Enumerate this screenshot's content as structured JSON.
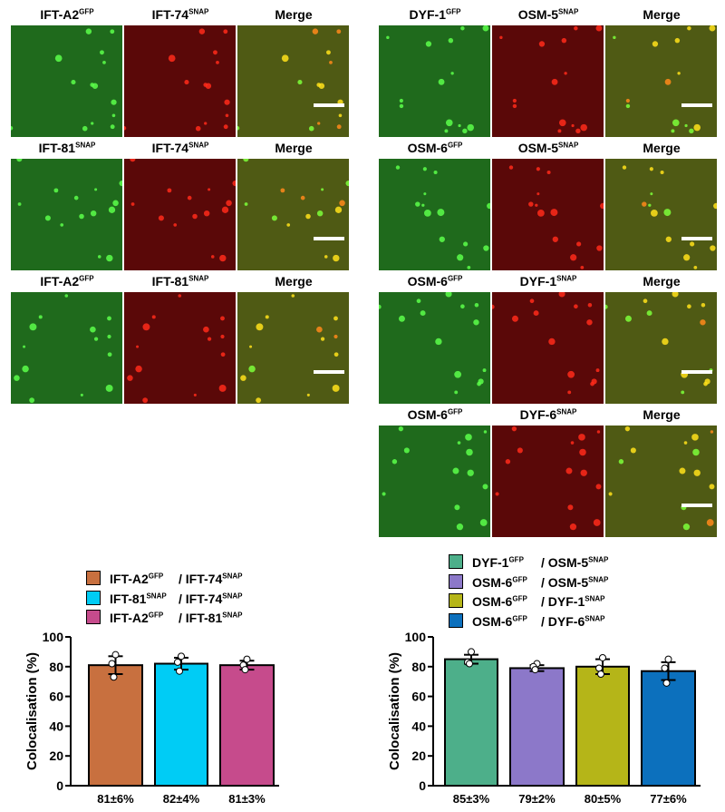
{
  "figure": {
    "left_panels": [
      {
        "labels": [
          {
            "name": "IFT-A2",
            "sup": "GFP"
          },
          {
            "name": "IFT-74",
            "sup": "SNAP"
          },
          {
            "name": "Merge",
            "sup": ""
          }
        ]
      },
      {
        "labels": [
          {
            "name": "IFT-81",
            "sup": "SNAP"
          },
          {
            "name": "IFT-74",
            "sup": "SNAP"
          },
          {
            "name": "Merge",
            "sup": ""
          }
        ]
      },
      {
        "labels": [
          {
            "name": "IFT-A2",
            "sup": "GFP"
          },
          {
            "name": "IFT-81",
            "sup": "SNAP"
          },
          {
            "name": "Merge",
            "sup": ""
          }
        ]
      }
    ],
    "right_panels": [
      {
        "labels": [
          {
            "name": "DYF-1",
            "sup": "GFP"
          },
          {
            "name": "OSM-5",
            "sup": "SNAP"
          },
          {
            "name": "Merge",
            "sup": ""
          }
        ]
      },
      {
        "labels": [
          {
            "name": "OSM-6",
            "sup": "GFP"
          },
          {
            "name": "OSM-5",
            "sup": "SNAP"
          },
          {
            "name": "Merge",
            "sup": ""
          }
        ]
      },
      {
        "labels": [
          {
            "name": "OSM-6",
            "sup": "GFP"
          },
          {
            "name": "DYF-1",
            "sup": "SNAP"
          },
          {
            "name": "Merge",
            "sup": ""
          }
        ]
      },
      {
        "labels": [
          {
            "name": "OSM-6",
            "sup": "GFP"
          },
          {
            "name": "DYF-6",
            "sup": "SNAP"
          },
          {
            "name": "Merge",
            "sup": ""
          }
        ]
      }
    ]
  },
  "chart_data": [
    {
      "type": "bar",
      "ylabel": "Colocalisation (%)",
      "ylim": [
        0,
        100
      ],
      "yticks": [
        0,
        20,
        40,
        60,
        80,
        100
      ],
      "legend": "top",
      "categories": [
        "81±6%",
        "82±4%",
        "81±3%"
      ],
      "series": [
        {
          "a": "IFT-A2",
          "a_sup": "GFP",
          "b": "/ IFT-74",
          "b_sup": "SNAP",
          "color": "#c8703f",
          "value": 81,
          "sd": 6,
          "points": [
            88,
            82,
            73
          ]
        },
        {
          "a": "IFT-81",
          "a_sup": "SNAP",
          "b": "/ IFT-74",
          "b_sup": "SNAP",
          "color": "#00ccf5",
          "value": 82,
          "sd": 4,
          "points": [
            87,
            83,
            77
          ]
        },
        {
          "a": "IFT-A2",
          "a_sup": "GFP",
          "b": "/ IFT-81",
          "b_sup": "SNAP",
          "color": "#c64b8c",
          "value": 81,
          "sd": 3,
          "points": [
            85,
            81,
            78
          ]
        }
      ]
    },
    {
      "type": "bar",
      "ylabel": "Colocalisation (%)",
      "ylim": [
        0,
        100
      ],
      "yticks": [
        0,
        20,
        40,
        60,
        80,
        100
      ],
      "legend": "top",
      "categories": [
        "85±3%",
        "79±2%",
        "80±5%",
        "77±6%"
      ],
      "series": [
        {
          "a": "DYF-1",
          "a_sup": "GFP",
          "b": "/ OSM-5",
          "b_sup": "SNAP",
          "color": "#4daf8a",
          "value": 85,
          "sd": 3,
          "points": [
            90,
            83,
            82
          ]
        },
        {
          "a": "OSM-6",
          "a_sup": "GFP",
          "b": "/ OSM-5",
          "b_sup": "SNAP",
          "color": "#8c78c9",
          "value": 79,
          "sd": 2,
          "points": [
            82,
            80,
            78
          ]
        },
        {
          "a": "OSM-6",
          "a_sup": "GFP",
          "b": "/ DYF-1",
          "b_sup": "SNAP",
          "color": "#b5b518",
          "value": 80,
          "sd": 5,
          "points": [
            86,
            79,
            75
          ]
        },
        {
          "a": "OSM-6",
          "a_sup": "GFP",
          "b": "/ DYF-6",
          "b_sup": "SNAP",
          "color": "#0c70bd",
          "value": 77,
          "sd": 6,
          "points": [
            85,
            79,
            69
          ]
        }
      ]
    }
  ]
}
